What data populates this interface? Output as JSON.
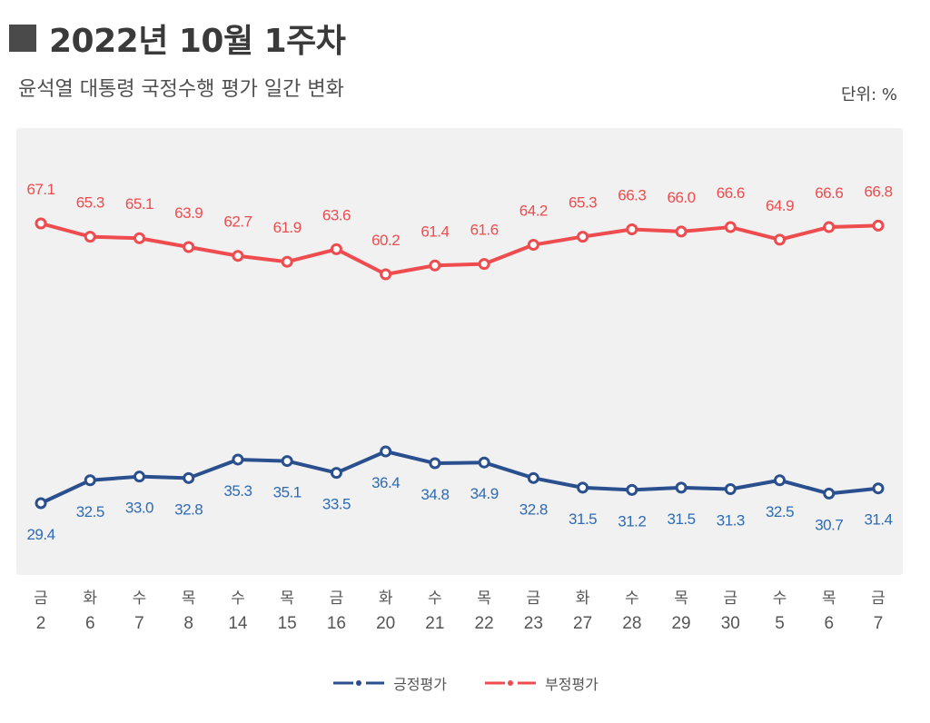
{
  "header": {
    "title": "2022년 10월 1주차",
    "subtitle": "윤석열 대통령 국정수행 평가 일간 변화",
    "unit": "단위: %"
  },
  "colors": {
    "positive": "#2a4f8e",
    "negative": "#ee4c4e",
    "positive_label": "#2d6bb6",
    "negative_label": "#ee4c4e",
    "plot_bg": "#f1f1f1"
  },
  "chart_data": {
    "type": "line",
    "title": "윤석열 대통령 국정수행 평가 일간 변화",
    "ylabel": "단위: %",
    "categories": [
      {
        "day": "금",
        "date": "2"
      },
      {
        "day": "화",
        "date": "6"
      },
      {
        "day": "수",
        "date": "7"
      },
      {
        "day": "목",
        "date": "8"
      },
      {
        "day": "수",
        "date": "14"
      },
      {
        "day": "목",
        "date": "15"
      },
      {
        "day": "금",
        "date": "16"
      },
      {
        "day": "화",
        "date": "20"
      },
      {
        "day": "수",
        "date": "21"
      },
      {
        "day": "목",
        "date": "22"
      },
      {
        "day": "금",
        "date": "23"
      },
      {
        "day": "화",
        "date": "27"
      },
      {
        "day": "수",
        "date": "28"
      },
      {
        "day": "목",
        "date": "29"
      },
      {
        "day": "금",
        "date": "30"
      },
      {
        "day": "수",
        "date": "5"
      },
      {
        "day": "목",
        "date": "6"
      },
      {
        "day": "금",
        "date": "7"
      }
    ],
    "series": [
      {
        "name": "긍정평가",
        "key": "positive",
        "values": [
          29.4,
          32.5,
          33.0,
          32.8,
          35.3,
          35.1,
          33.5,
          36.4,
          34.8,
          34.9,
          32.8,
          31.5,
          31.2,
          31.5,
          31.3,
          32.5,
          30.7,
          31.4
        ],
        "labels": [
          "29.4",
          "32.5",
          "33.0",
          "32.8",
          "35.3",
          "35.1",
          "33.5",
          "36.4",
          "34.8",
          "34.9",
          "32.8",
          "31.5",
          "31.2",
          "31.5",
          "31.3",
          "32.5",
          "30.7",
          "31.4"
        ]
      },
      {
        "name": "부정평가",
        "key": "negative",
        "values": [
          67.1,
          65.3,
          65.1,
          63.9,
          62.7,
          61.9,
          63.6,
          60.2,
          61.4,
          61.6,
          64.2,
          65.3,
          66.3,
          66.0,
          66.6,
          64.9,
          66.6,
          66.8
        ],
        "labels": [
          "67.1",
          "65.3",
          "65.1",
          "63.9",
          "62.7",
          "61.9",
          "63.6",
          "60.2",
          "61.4",
          "61.6",
          "64.2",
          "65.3",
          "66.3",
          "66.0",
          "66.6",
          "64.9",
          "66.6",
          "66.8"
        ]
      }
    ],
    "legend": "bottom-center"
  }
}
